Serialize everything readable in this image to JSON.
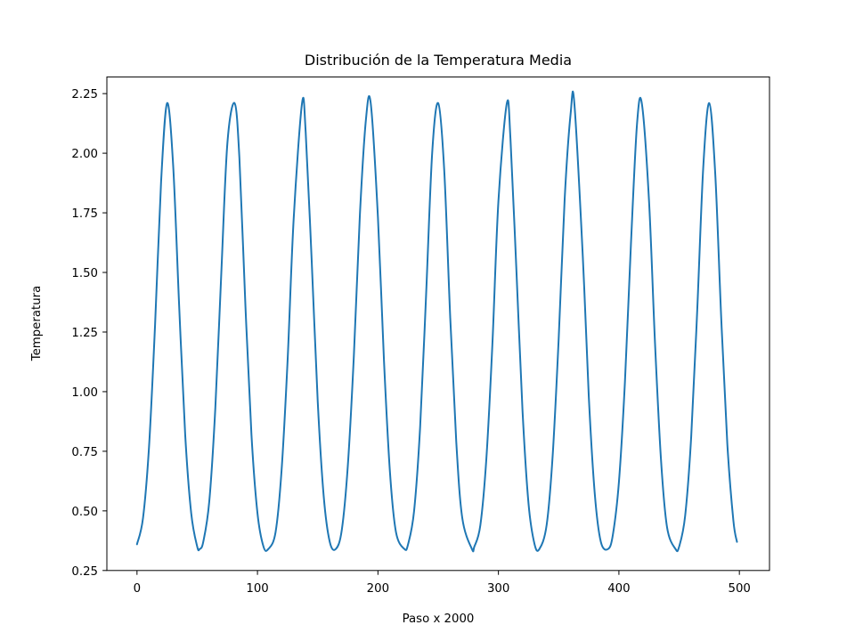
{
  "chart_data": {
    "type": "line",
    "title": "Distribución de la Temperatura Media",
    "xlabel": "Paso x 2000",
    "ylabel": "Temperatura",
    "xlim": [
      -25,
      525
    ],
    "ylim": [
      0.25,
      2.32
    ],
    "xticks": [
      0,
      100,
      200,
      300,
      400,
      500
    ],
    "xtick_labels": [
      "0",
      "100",
      "200",
      "300",
      "400",
      "500"
    ],
    "yticks": [
      0.25,
      0.5,
      0.75,
      1.0,
      1.25,
      1.5,
      1.75,
      2.0,
      2.25
    ],
    "ytick_labels": [
      "0.25",
      "0.50",
      "0.75",
      "1.00",
      "1.25",
      "1.50",
      "1.75",
      "2.00",
      "2.25"
    ],
    "grid": false,
    "series": [
      {
        "color": "#1f77b4",
        "x": [
          0,
          5,
          10,
          15,
          20,
          25,
          30,
          35,
          40,
          45,
          50,
          52,
          55,
          60,
          65,
          70,
          75,
          81,
          85,
          90,
          95,
          100,
          105,
          109,
          115,
          120,
          125,
          130,
          137,
          140,
          145,
          150,
          155,
          160,
          165,
          170,
          175,
          180,
          185,
          190,
          194,
          200,
          205,
          210,
          215,
          222,
          225,
          230,
          235,
          240,
          245,
          250,
          255,
          260,
          265,
          270,
          278,
          280,
          285,
          290,
          295,
          300,
          307,
          310,
          315,
          320,
          325,
          330,
          334,
          340,
          345,
          350,
          355,
          360,
          363,
          370,
          375,
          380,
          385,
          391,
          395,
          400,
          405,
          410,
          415,
          419,
          425,
          430,
          435,
          440,
          447,
          450,
          455,
          460,
          465,
          470,
          475,
          480,
          485,
          490,
          495,
          498
        ],
        "y": [
          0.36,
          0.47,
          0.77,
          1.28,
          1.88,
          2.21,
          1.95,
          1.36,
          0.82,
          0.49,
          0.35,
          0.34,
          0.37,
          0.54,
          0.93,
          1.5,
          2.04,
          2.21,
          1.98,
          1.36,
          0.82,
          0.49,
          0.35,
          0.34,
          0.41,
          0.67,
          1.13,
          1.72,
          2.21,
          2.09,
          1.55,
          0.96,
          0.56,
          0.37,
          0.34,
          0.42,
          0.69,
          1.15,
          1.74,
          2.14,
          2.21,
          1.73,
          1.13,
          0.66,
          0.41,
          0.34,
          0.36,
          0.5,
          0.85,
          1.41,
          2.0,
          2.21,
          1.93,
          1.31,
          0.79,
          0.47,
          0.34,
          0.35,
          0.44,
          0.72,
          1.2,
          1.8,
          2.21,
          2.06,
          1.5,
          0.92,
          0.53,
          0.36,
          0.34,
          0.44,
          0.73,
          1.22,
          1.81,
          2.17,
          2.21,
          1.57,
          0.98,
          0.57,
          0.37,
          0.34,
          0.4,
          0.62,
          1.04,
          1.62,
          2.12,
          2.21,
          1.8,
          1.2,
          0.71,
          0.43,
          0.34,
          0.35,
          0.48,
          0.81,
          1.34,
          1.94,
          2.21,
          1.91,
          1.3,
          0.78,
          0.46,
          0.37
        ]
      }
    ]
  }
}
